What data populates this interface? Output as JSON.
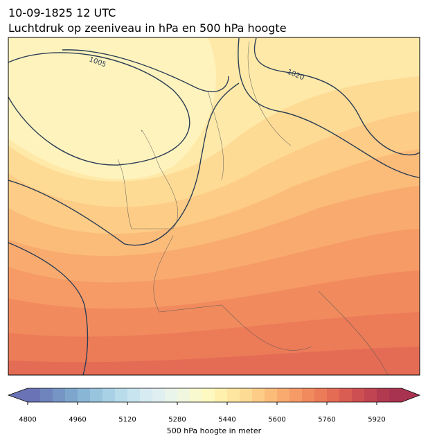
{
  "title": [
    "10-09-1825 12 UTC",
    "Luchtdruk op zeeniveau in hPa en 500 hPa hoogte"
  ],
  "contour_labels": [
    "1005",
    "1020"
  ],
  "colorbar": {
    "label": "500 hPa hoogte in meter",
    "lim": [
      4800,
      6000
    ],
    "ticks": [
      4800,
      4960,
      5120,
      5280,
      5440,
      5600,
      5760,
      5920
    ],
    "colors": [
      "#6a73b5",
      "#6f84bd",
      "#7695c4",
      "#7ea6cc",
      "#8ab6d6",
      "#98c4de",
      "#a8d1e5",
      "#b8dcea",
      "#c8e4ef",
      "#d7ebf2",
      "#e0efef",
      "#e9f4ea",
      "#f1f7de",
      "#f8f9ce",
      "#fdf9c0",
      "#fff1ad",
      "#fee6a0",
      "#fedb95",
      "#fdcc86",
      "#fbbc7a",
      "#f9ab6f",
      "#f69b66",
      "#f18b5e",
      "#ec7b58",
      "#e46c55",
      "#da5d53",
      "#ce4f52",
      "#c04451",
      "#b13a51",
      "#a83350"
    ]
  }
}
